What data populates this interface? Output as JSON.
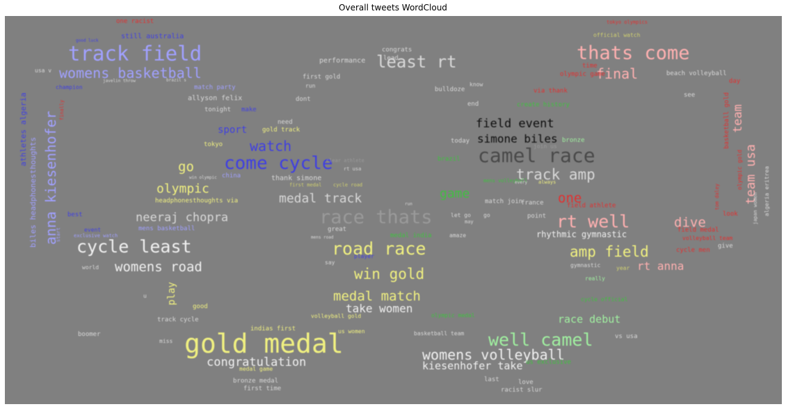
{
  "chart_data": {
    "type": "wordcloud",
    "title": "Overall tweets WordCloud",
    "background": "#808080",
    "colors": {
      "blue": "#4040e0",
      "light_blue": "#a0a0ff",
      "yellow": "#f0f080",
      "white": "#f0f0f0",
      "light_gray": "#d8d8d8",
      "dark_gray": "#4a4a4a",
      "gray": "#9a9a9a",
      "black": "#101010",
      "green": "#40c040",
      "light_green": "#a0f0a0",
      "pink": "#ffb0b0",
      "red": "#e03030",
      "olive": "#d0d070"
    },
    "words": [
      {
        "text": "gold medal",
        "color": "yellow"
      },
      {
        "text": "track field",
        "color": "light_blue"
      },
      {
        "text": "camel race",
        "color": "dark_gray"
      },
      {
        "text": "race thats",
        "color": "gray"
      },
      {
        "text": "come cycle",
        "color": "blue"
      },
      {
        "text": "thats come",
        "color": "pink"
      },
      {
        "text": "cycle least",
        "color": "white"
      },
      {
        "text": "road race",
        "color": "yellow"
      },
      {
        "text": "well camel",
        "color": "light_green"
      },
      {
        "text": "rt well",
        "color": "pink"
      },
      {
        "text": "least rt",
        "color": "light_gray"
      },
      {
        "text": "anna kiesenhofer",
        "color": "light_blue"
      },
      {
        "text": "womens basketball",
        "color": "light_blue"
      },
      {
        "text": "womens volleyball",
        "color": "white"
      },
      {
        "text": "final",
        "color": "pink"
      },
      {
        "text": "medal track",
        "color": "light_gray"
      },
      {
        "text": "medal match",
        "color": "yellow"
      },
      {
        "text": "track amp",
        "color": "light_gray"
      },
      {
        "text": "amp field",
        "color": "yellow"
      },
      {
        "text": "win gold",
        "color": "yellow"
      },
      {
        "text": "womens road",
        "color": "white"
      },
      {
        "text": "neeraj chopra",
        "color": "light_gray"
      },
      {
        "text": "olympic",
        "color": "yellow"
      },
      {
        "text": "congratulation",
        "color": "white"
      },
      {
        "text": "team usa",
        "color": "pink"
      },
      {
        "text": "watch",
        "color": "blue"
      },
      {
        "text": "dive",
        "color": "pink"
      },
      {
        "text": "one",
        "color": "red"
      },
      {
        "text": "go",
        "color": "yellow"
      },
      {
        "text": "field event",
        "color": "black"
      },
      {
        "text": "simone biles",
        "color": "black"
      },
      {
        "text": "take women",
        "color": "white"
      },
      {
        "text": "kiesenhofer take",
        "color": "white"
      },
      {
        "text": "rt anna",
        "color": "pink"
      },
      {
        "text": "game",
        "color": "green"
      },
      {
        "text": "team",
        "color": "pink"
      },
      {
        "text": "race debut",
        "color": "light_green"
      },
      {
        "text": "sport",
        "color": "blue"
      },
      {
        "text": "play",
        "color": "yellow"
      },
      {
        "text": "rhythmic gymnastic",
        "color": "white"
      },
      {
        "text": "biles headphonesthoughts",
        "color": "light_blue"
      },
      {
        "text": "athletes algeria",
        "color": "blue"
      },
      {
        "text": "still australia",
        "color": "blue"
      },
      {
        "text": "performance",
        "color": "light_gray"
      },
      {
        "text": "congrats",
        "color": "light_gray"
      },
      {
        "text": "lead",
        "color": "light_gray"
      },
      {
        "text": "first gold",
        "color": "light_gray"
      },
      {
        "text": "run",
        "color": "light_gray"
      },
      {
        "text": "know",
        "color": "light_gray"
      },
      {
        "text": "via thank",
        "color": "red"
      },
      {
        "text": "olympic game",
        "color": "red"
      },
      {
        "text": "time",
        "color": "red"
      },
      {
        "text": "beach volleyball",
        "color": "light_gray"
      },
      {
        "text": "basketball gold",
        "color": "red"
      },
      {
        "text": "day",
        "color": "red"
      },
      {
        "text": "see",
        "color": "light_gray"
      },
      {
        "text": "usa v",
        "color": "light_gray"
      },
      {
        "text": "champion",
        "color": "blue"
      },
      {
        "text": "javelin throw",
        "color": "light_gray"
      },
      {
        "text": "brazil s",
        "color": "light_gray"
      },
      {
        "text": "match party",
        "color": "light_blue"
      },
      {
        "text": "allyson felix",
        "color": "light_gray"
      },
      {
        "text": "tonight",
        "color": "light_gray"
      },
      {
        "text": "make",
        "color": "blue"
      },
      {
        "text": "need",
        "color": "light_gray"
      },
      {
        "text": "dont",
        "color": "light_gray"
      },
      {
        "text": "end",
        "color": "light_gray"
      },
      {
        "text": "create history",
        "color": "green"
      },
      {
        "text": "gold track",
        "color": "yellow"
      },
      {
        "text": "tokyo",
        "color": "yellow"
      },
      {
        "text": "today",
        "color": "light_gray"
      },
      {
        "text": "bronze",
        "color": "light_green"
      },
      {
        "text": "brazil",
        "color": "green"
      },
      {
        "text": "china",
        "color": "light_blue"
      },
      {
        "text": "thank simone",
        "color": "light_gray"
      },
      {
        "text": "headphonesthoughts via",
        "color": "yellow"
      },
      {
        "text": "best",
        "color": "blue"
      },
      {
        "text": "event",
        "color": "blue"
      },
      {
        "text": "mens basketball",
        "color": "light_blue"
      },
      {
        "text": "great",
        "color": "light_gray"
      },
      {
        "text": "medal india",
        "color": "green"
      },
      {
        "text": "amaze",
        "color": "light_gray"
      },
      {
        "text": "point",
        "color": "light_gray"
      },
      {
        "text": "france",
        "color": "light_gray"
      },
      {
        "text": "field athlete",
        "color": "red"
      },
      {
        "text": "let go",
        "color": "light_gray"
      },
      {
        "text": "go",
        "color": "light_gray"
      },
      {
        "text": "match join",
        "color": "light_gray"
      },
      {
        "text": "may",
        "color": "light_gray"
      },
      {
        "text": "field medal",
        "color": "red"
      },
      {
        "text": "volleyball team",
        "color": "red"
      },
      {
        "text": "give",
        "color": "light_gray"
      },
      {
        "text": "cycle men",
        "color": "red"
      },
      {
        "text": "look",
        "color": "red"
      },
      {
        "text": "gymnastic",
        "color": "light_gray"
      },
      {
        "text": "year",
        "color": "olive"
      },
      {
        "text": "really",
        "color": "light_green"
      },
      {
        "text": "cycle official",
        "color": "green"
      },
      {
        "text": "world",
        "color": "light_gray"
      },
      {
        "text": "u",
        "color": "light_gray"
      },
      {
        "text": "good",
        "color": "yellow"
      },
      {
        "text": "track cycle",
        "color": "light_gray"
      },
      {
        "text": "boomer",
        "color": "light_gray"
      },
      {
        "text": "miss",
        "color": "light_gray"
      },
      {
        "text": "indias first",
        "color": "yellow"
      },
      {
        "text": "us women",
        "color": "yellow"
      },
      {
        "text": "volleyball gold",
        "color": "yellow"
      },
      {
        "text": "olympic medal",
        "color": "green"
      },
      {
        "text": "basketball team",
        "color": "light_gray"
      },
      {
        "text": "vs usa",
        "color": "light_gray"
      },
      {
        "text": "us exclusive",
        "color": "green"
      },
      {
        "text": "medal game",
        "color": "yellow"
      },
      {
        "text": "bronze medal",
        "color": "light_gray"
      },
      {
        "text": "first time",
        "color": "light_gray"
      },
      {
        "text": "last",
        "color": "light_gray"
      },
      {
        "text": "love",
        "color": "light_gray"
      },
      {
        "text": "racist slur",
        "color": "light_gray"
      },
      {
        "text": "say",
        "color": "light_gray"
      },
      {
        "text": "algeria eritrea",
        "color": "light_gray"
      },
      {
        "text": "japan women",
        "color": "light_gray"
      },
      {
        "text": "olympic gold",
        "color": "red"
      },
      {
        "text": "tom daley",
        "color": "red"
      },
      {
        "text": "finally",
        "color": "red"
      },
      {
        "text": "start",
        "color": "light_blue"
      },
      {
        "text": "exclusive watch",
        "color": "light_blue"
      },
      {
        "text": "player",
        "color": "blue"
      },
      {
        "text": "official watch",
        "color": "olive"
      },
      {
        "text": "tokyo olympics",
        "color": "red"
      },
      {
        "text": "one racist",
        "color": "red"
      },
      {
        "text": "good luck",
        "color": "blue"
      },
      {
        "text": "bulldoze",
        "color": "light_gray"
      },
      {
        "text": "join us",
        "color": "gray"
      },
      {
        "text": "mens volleyball",
        "color": "green"
      },
      {
        "text": "mens road",
        "color": "light_gray"
      },
      {
        "text": "clear athlete",
        "color": "gray"
      },
      {
        "text": "run",
        "color": "light_gray"
      },
      {
        "text": "every",
        "color": "light_gray"
      },
      {
        "text": "rt usa",
        "color": "light_gray"
      },
      {
        "text": "cycle road",
        "color": "olive"
      },
      {
        "text": "first medal",
        "color": "olive"
      },
      {
        "text": "win olympic",
        "color": "light_gray"
      },
      {
        "text": "always",
        "color": "yellow"
      },
      {
        "text": "people",
        "color": "red"
      }
    ]
  }
}
